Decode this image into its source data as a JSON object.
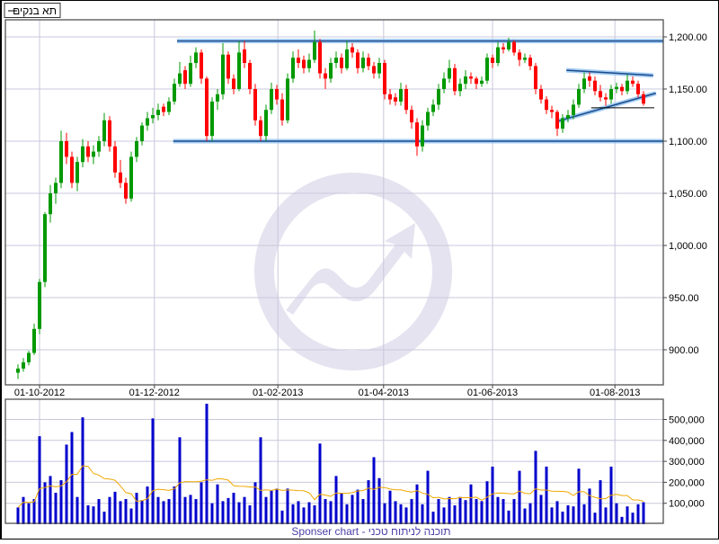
{
  "legend": {
    "label": "תא בנקים",
    "line_color": "#000000"
  },
  "footer": {
    "text": "Sponser chart - תוכנה לניתוח טכני"
  },
  "colors": {
    "up": "#009900",
    "down": "#ff0000",
    "volume": "#0000cc",
    "volume_ma": "#f0a800",
    "grid": "#c8c8dc",
    "trendline": "#1a4a8a",
    "trendline_glow": "#8ec0f0",
    "watermark": "#e6e3f0"
  },
  "chart_data": [
    {
      "type": "candlestick",
      "ylim": [
        867,
        1218
      ],
      "y_ticks": [
        {
          "value": 900,
          "label": "900.00"
        },
        {
          "value": 950,
          "label": "950.00"
        },
        {
          "value": 1000,
          "label": "1,000.00"
        },
        {
          "value": 1050,
          "label": "1,050.00"
        },
        {
          "value": 1100,
          "label": "1,100.00"
        },
        {
          "value": 1150,
          "label": "1,150.00"
        },
        {
          "value": 1200,
          "label": "1,200.00"
        }
      ],
      "x_ticks": [
        {
          "index": 4,
          "label": "01-10-2012"
        },
        {
          "index": 25.3,
          "label": "01-12-2012"
        },
        {
          "index": 48.2,
          "label": "01-02-2013"
        },
        {
          "index": 67.8,
          "label": "01-04-2013"
        },
        {
          "index": 88,
          "label": "01-06-2013"
        },
        {
          "index": 110.7,
          "label": "01-08-2013"
        }
      ],
      "grid": true,
      "ohlc": [
        [
          878,
          886,
          872,
          882
        ],
        [
          882,
          892,
          879,
          888
        ],
        [
          888,
          899,
          885,
          897
        ],
        [
          897,
          925,
          895,
          920
        ],
        [
          920,
          968,
          915,
          965
        ],
        [
          965,
          1032,
          960,
          1030
        ],
        [
          1030,
          1058,
          1022,
          1050
        ],
        [
          1050,
          1065,
          1040,
          1060
        ],
        [
          1060,
          1110,
          1055,
          1100
        ],
        [
          1100,
          1108,
          1078,
          1085
        ],
        [
          1085,
          1090,
          1055,
          1060
        ],
        [
          1060,
          1085,
          1052,
          1080
        ],
        [
          1080,
          1102,
          1075,
          1095
        ],
        [
          1095,
          1100,
          1080,
          1085
        ],
        [
          1085,
          1096,
          1078,
          1090
        ],
        [
          1090,
          1105,
          1085,
          1100
        ],
        [
          1100,
          1127,
          1095,
          1120
        ],
        [
          1120,
          1124,
          1090,
          1095
        ],
        [
          1095,
          1100,
          1065,
          1070
        ],
        [
          1070,
          1082,
          1055,
          1060
        ],
        [
          1060,
          1065,
          1040,
          1045
        ],
        [
          1045,
          1090,
          1042,
          1085
        ],
        [
          1085,
          1104,
          1080,
          1100
        ],
        [
          1100,
          1118,
          1096,
          1115
        ],
        [
          1115,
          1128,
          1110,
          1122
        ],
        [
          1122,
          1132,
          1117,
          1125
        ],
        [
          1125,
          1136,
          1120,
          1130
        ],
        [
          1133,
          1136,
          1124,
          1128
        ],
        [
          1128,
          1142,
          1125,
          1138
        ],
        [
          1138,
          1160,
          1135,
          1155
        ],
        [
          1155,
          1176,
          1152,
          1165
        ],
        [
          1168,
          1172,
          1150,
          1155
        ],
        [
          1155,
          1182,
          1152,
          1175
        ],
        [
          1175,
          1190,
          1170,
          1185
        ],
        [
          1185,
          1188,
          1155,
          1160
        ],
        [
          1160,
          1162,
          1100,
          1105
        ],
        [
          1105,
          1142,
          1100,
          1138
        ],
        [
          1138,
          1150,
          1130,
          1145
        ],
        [
          1145,
          1194,
          1140,
          1183
        ],
        [
          1183,
          1186,
          1155,
          1160
        ],
        [
          1160,
          1164,
          1145,
          1150
        ],
        [
          1150,
          1196,
          1148,
          1185
        ],
        [
          1188,
          1196,
          1170,
          1175
        ],
        [
          1175,
          1178,
          1145,
          1150
        ],
        [
          1150,
          1155,
          1115,
          1120
        ],
        [
          1120,
          1124,
          1100,
          1105
        ],
        [
          1105,
          1135,
          1100,
          1130
        ],
        [
          1130,
          1156,
          1126,
          1150
        ],
        [
          1150,
          1154,
          1135,
          1140
        ],
        [
          1140,
          1146,
          1115,
          1120
        ],
        [
          1120,
          1165,
          1117,
          1160
        ],
        [
          1160,
          1186,
          1156,
          1180
        ],
        [
          1180,
          1188,
          1170,
          1175
        ],
        [
          1178,
          1182,
          1165,
          1170
        ],
        [
          1170,
          1184,
          1166,
          1178
        ],
        [
          1178,
          1206,
          1175,
          1195
        ],
        [
          1195,
          1198,
          1160,
          1165
        ],
        [
          1165,
          1170,
          1150,
          1160
        ],
        [
          1160,
          1180,
          1156,
          1175
        ],
        [
          1175,
          1186,
          1170,
          1180
        ],
        [
          1180,
          1184,
          1165,
          1170
        ],
        [
          1170,
          1196,
          1168,
          1188
        ],
        [
          1190,
          1194,
          1180,
          1185
        ],
        [
          1185,
          1188,
          1165,
          1170
        ],
        [
          1170,
          1186,
          1166,
          1180
        ],
        [
          1180,
          1184,
          1168,
          1172
        ],
        [
          1172,
          1176,
          1160,
          1165
        ],
        [
          1165,
          1180,
          1160,
          1175
        ],
        [
          1175,
          1178,
          1140,
          1145
        ],
        [
          1145,
          1150,
          1135,
          1140
        ],
        [
          1142,
          1146,
          1134,
          1138
        ],
        [
          1138,
          1156,
          1134,
          1150
        ],
        [
          1150,
          1154,
          1126,
          1130
        ],
        [
          1130,
          1134,
          1112,
          1118
        ],
        [
          1118,
          1122,
          1086,
          1095
        ],
        [
          1095,
          1120,
          1090,
          1115
        ],
        [
          1115,
          1132,
          1110,
          1128
        ],
        [
          1128,
          1140,
          1124,
          1135
        ],
        [
          1135,
          1155,
          1130,
          1150
        ],
        [
          1150,
          1166,
          1146,
          1160
        ],
        [
          1160,
          1178,
          1156,
          1170
        ],
        [
          1170,
          1174,
          1144,
          1148
        ],
        [
          1148,
          1160,
          1143,
          1155
        ],
        [
          1155,
          1168,
          1150,
          1162
        ],
        [
          1162,
          1166,
          1155,
          1160
        ],
        [
          1160,
          1162,
          1150,
          1155
        ],
        [
          1155,
          1162,
          1152,
          1158
        ],
        [
          1158,
          1184,
          1155,
          1180
        ],
        [
          1180,
          1183,
          1170,
          1175
        ],
        [
          1175,
          1195,
          1172,
          1190
        ],
        [
          1190,
          1194,
          1184,
          1188
        ],
        [
          1188,
          1199,
          1186,
          1195
        ],
        [
          1195,
          1197,
          1182,
          1185
        ],
        [
          1185,
          1188,
          1172,
          1178
        ],
        [
          1178,
          1184,
          1175,
          1180
        ],
        [
          1180,
          1183,
          1168,
          1172
        ],
        [
          1172,
          1175,
          1145,
          1150
        ],
        [
          1150,
          1154,
          1136,
          1140
        ],
        [
          1140,
          1143,
          1126,
          1130
        ],
        [
          1130,
          1134,
          1122,
          1128
        ],
        [
          1128,
          1130,
          1105,
          1112
        ],
        [
          1112,
          1126,
          1108,
          1122
        ],
        [
          1122,
          1130,
          1118,
          1125
        ],
        [
          1125,
          1140,
          1121,
          1135
        ],
        [
          1135,
          1155,
          1132,
          1150
        ],
        [
          1150,
          1166,
          1146,
          1160
        ],
        [
          1162,
          1166,
          1152,
          1158
        ],
        [
          1158,
          1162,
          1144,
          1148
        ],
        [
          1148,
          1154,
          1138,
          1142
        ],
        [
          1142,
          1146,
          1134,
          1140
        ],
        [
          1140,
          1154,
          1136,
          1150
        ],
        [
          1150,
          1156,
          1146,
          1152
        ],
        [
          1152,
          1155,
          1144,
          1148
        ],
        [
          1148,
          1164,
          1145,
          1158
        ],
        [
          1158,
          1162,
          1152,
          1155
        ],
        [
          1155,
          1158,
          1142,
          1145
        ],
        [
          1145,
          1148,
          1134,
          1136
        ]
      ],
      "trendlines": [
        {
          "from": [
            29.5,
            1196
          ],
          "to": [
            120,
            1196
          ],
          "style": "blue"
        },
        {
          "from": [
            28.8,
            1100
          ],
          "to": [
            120,
            1100
          ],
          "style": "blue"
        },
        {
          "from": [
            101.7,
            1168
          ],
          "to": [
            117.8,
            1163
          ],
          "style": "blue"
        },
        {
          "from": [
            100,
            1119
          ],
          "to": [
            118.3,
            1146
          ],
          "style": "blue"
        },
        {
          "from": [
            106.3,
            1132
          ],
          "to": [
            118,
            1132
          ],
          "style": "black"
        }
      ]
    },
    {
      "type": "bar",
      "ylim": [
        0,
        596000
      ],
      "y_ticks": [
        {
          "value": 100000,
          "label": "100,000"
        },
        {
          "value": 200000,
          "label": "200,000"
        },
        {
          "value": 300000,
          "label": "300,000"
        },
        {
          "value": 400000,
          "label": "400,000"
        },
        {
          "value": 500000,
          "label": "500,000"
        }
      ],
      "grid": true,
      "values": [
        80000,
        130000,
        100000,
        120000,
        420000,
        200000,
        230000,
        150000,
        210000,
        380000,
        440000,
        130000,
        510000,
        90000,
        85000,
        120000,
        60000,
        130000,
        155000,
        110000,
        120000,
        75000,
        150000,
        115000,
        180000,
        505000,
        130000,
        110000,
        120000,
        180000,
        415000,
        130000,
        140000,
        120000,
        200000,
        575000,
        100000,
        190000,
        110000,
        125000,
        150000,
        105000,
        130000,
        90000,
        200000,
        415000,
        130000,
        160000,
        170000,
        65000,
        170000,
        95000,
        110000,
        80000,
        105000,
        90000,
        385000,
        120000,
        110000,
        230000,
        150000,
        95000,
        140000,
        165000,
        120000,
        210000,
        320000,
        220000,
        100000,
        160000,
        110000,
        95000,
        80000,
        120000,
        190000,
        95000,
        255000,
        60000,
        120000,
        80000,
        130000,
        90000,
        130000,
        115000,
        190000,
        120000,
        110000,
        205000,
        275000,
        130000,
        120000,
        65000,
        120000,
        255000,
        75000,
        100000,
        350000,
        140000,
        275000,
        80000,
        110000,
        60000,
        90000,
        85000,
        265000,
        95000,
        170000,
        55000,
        210000,
        80000,
        275000,
        100000,
        35000,
        85000,
        55000,
        95000,
        105000
      ],
      "overlay": "moving-average"
    }
  ]
}
